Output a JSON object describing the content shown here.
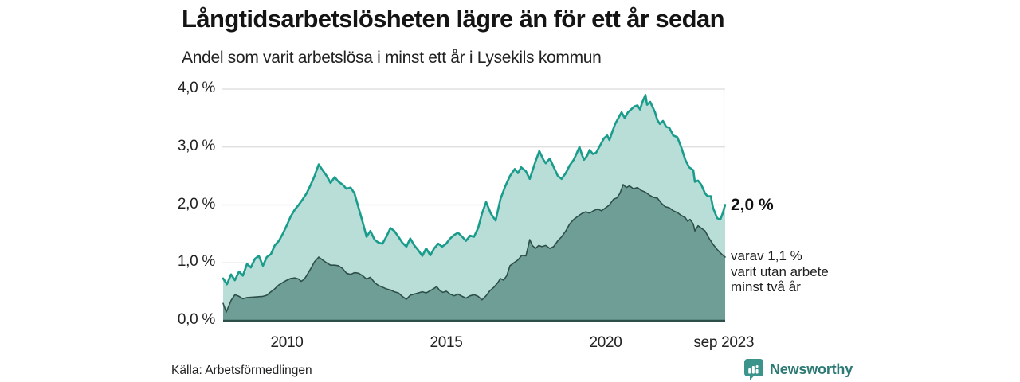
{
  "header": {
    "title": "Långtidsarbetslösheten lägre än för ett år sedan",
    "subtitle": "Andel som varit arbetslösa i minst ett år i Lysekils kommun"
  },
  "footer": {
    "source": "Källa: Arbetsförmedlingen",
    "brand": "Newsworthy",
    "brand_color": "#2d7a74",
    "brand_icon": "bar-chart-speech-bubble-icon",
    "brand_icon_color": "#3b948c"
  },
  "chart_data": {
    "type": "area",
    "title": "Långtidsarbetslösheten lägre än för ett år sedan",
    "subtitle": "Andel som varit arbetslösa i minst ett år i Lysekils kommun",
    "x_range": [
      2008,
      2023.75
    ],
    "ylim": [
      0,
      4.0
    ],
    "grid": "horizontal",
    "grid_color": "#dcdcdc",
    "baseline_color": "#2d4f4a",
    "y_ticks": [
      {
        "v": 0.0,
        "label": "0,0 %"
      },
      {
        "v": 1.0,
        "label": "1,0 %"
      },
      {
        "v": 2.0,
        "label": "2,0 %"
      },
      {
        "v": 3.0,
        "label": "3,0 %"
      },
      {
        "v": 4.0,
        "label": "4,0 %"
      }
    ],
    "x_ticks": [
      {
        "t": 2010,
        "label": "2010"
      },
      {
        "t": 2015,
        "label": "2015"
      },
      {
        "t": 2020,
        "label": "2020"
      },
      {
        "t": 2023.708,
        "label": "sep 2023"
      }
    ],
    "annotations": {
      "end_value_label": "2,0 %",
      "sub_lines": [
        "varav 1,1 %",
        "varit utan arbete",
        "minst två år"
      ]
    },
    "series": [
      {
        "name": "Arbetslösa minst ett år",
        "end_value": 2.0,
        "line_color": "#1a9c8c",
        "fill_color": "#b9ddd7",
        "line_width": 2.6,
        "points": [
          [
            0,
            0.73
          ],
          [
            0.12,
            0.63
          ],
          [
            0.25,
            0.8
          ],
          [
            0.37,
            0.7
          ],
          [
            0.5,
            0.85
          ],
          [
            0.62,
            0.78
          ],
          [
            0.75,
            0.98
          ],
          [
            0.87,
            0.92
          ],
          [
            1,
            1.07
          ],
          [
            1.12,
            1.12
          ],
          [
            1.25,
            0.95
          ],
          [
            1.37,
            1.1
          ],
          [
            1.5,
            1.15
          ],
          [
            1.62,
            1.3
          ],
          [
            1.75,
            1.38
          ],
          [
            1.87,
            1.5
          ],
          [
            2,
            1.65
          ],
          [
            2.12,
            1.8
          ],
          [
            2.25,
            1.92
          ],
          [
            2.37,
            2.0
          ],
          [
            2.5,
            2.1
          ],
          [
            2.62,
            2.2
          ],
          [
            2.75,
            2.35
          ],
          [
            2.87,
            2.5
          ],
          [
            3,
            2.7
          ],
          [
            3.12,
            2.6
          ],
          [
            3.25,
            2.5
          ],
          [
            3.37,
            2.38
          ],
          [
            3.5,
            2.48
          ],
          [
            3.62,
            2.4
          ],
          [
            3.75,
            2.35
          ],
          [
            3.87,
            2.28
          ],
          [
            4,
            2.3
          ],
          [
            4.12,
            2.2
          ],
          [
            4.25,
            1.95
          ],
          [
            4.37,
            1.72
          ],
          [
            4.5,
            1.45
          ],
          [
            4.62,
            1.55
          ],
          [
            4.75,
            1.4
          ],
          [
            4.87,
            1.35
          ],
          [
            5,
            1.33
          ],
          [
            5.12,
            1.45
          ],
          [
            5.25,
            1.6
          ],
          [
            5.37,
            1.55
          ],
          [
            5.5,
            1.45
          ],
          [
            5.62,
            1.35
          ],
          [
            5.75,
            1.28
          ],
          [
            5.87,
            1.42
          ],
          [
            6,
            1.3
          ],
          [
            6.12,
            1.22
          ],
          [
            6.25,
            1.12
          ],
          [
            6.37,
            1.25
          ],
          [
            6.5,
            1.13
          ],
          [
            6.62,
            1.25
          ],
          [
            6.75,
            1.33
          ],
          [
            6.87,
            1.28
          ],
          [
            7,
            1.33
          ],
          [
            7.12,
            1.42
          ],
          [
            7.25,
            1.48
          ],
          [
            7.37,
            1.52
          ],
          [
            7.5,
            1.45
          ],
          [
            7.62,
            1.38
          ],
          [
            7.75,
            1.47
          ],
          [
            7.87,
            1.45
          ],
          [
            8,
            1.6
          ],
          [
            8.12,
            1.85
          ],
          [
            8.25,
            2.05
          ],
          [
            8.4,
            1.85
          ],
          [
            8.55,
            1.73
          ],
          [
            8.7,
            2.1
          ],
          [
            8.85,
            2.32
          ],
          [
            9,
            2.5
          ],
          [
            9.15,
            2.62
          ],
          [
            9.25,
            2.55
          ],
          [
            9.35,
            2.65
          ],
          [
            9.5,
            2.58
          ],
          [
            9.62,
            2.45
          ],
          [
            9.8,
            2.75
          ],
          [
            9.92,
            2.93
          ],
          [
            10.05,
            2.78
          ],
          [
            10.12,
            2.72
          ],
          [
            10.25,
            2.8
          ],
          [
            10.4,
            2.62
          ],
          [
            10.5,
            2.5
          ],
          [
            10.62,
            2.45
          ],
          [
            10.75,
            2.55
          ],
          [
            10.87,
            2.68
          ],
          [
            11,
            2.78
          ],
          [
            11.1,
            2.9
          ],
          [
            11.18,
            3.0
          ],
          [
            11.25,
            2.88
          ],
          [
            11.32,
            2.78
          ],
          [
            11.42,
            2.85
          ],
          [
            11.5,
            2.95
          ],
          [
            11.6,
            2.88
          ],
          [
            11.7,
            2.9
          ],
          [
            11.8,
            3.0
          ],
          [
            11.88,
            3.08
          ],
          [
            11.95,
            3.15
          ],
          [
            12.05,
            3.2
          ],
          [
            12.12,
            3.12
          ],
          [
            12.2,
            3.25
          ],
          [
            12.3,
            3.4
          ],
          [
            12.4,
            3.5
          ],
          [
            12.5,
            3.6
          ],
          [
            12.6,
            3.5
          ],
          [
            12.7,
            3.6
          ],
          [
            12.8,
            3.65
          ],
          [
            12.9,
            3.7
          ],
          [
            13,
            3.72
          ],
          [
            13.08,
            3.65
          ],
          [
            13.15,
            3.77
          ],
          [
            13.25,
            3.9
          ],
          [
            13.3,
            3.73
          ],
          [
            13.4,
            3.78
          ],
          [
            13.45,
            3.72
          ],
          [
            13.55,
            3.6
          ],
          [
            13.62,
            3.47
          ],
          [
            13.7,
            3.4
          ],
          [
            13.8,
            3.45
          ],
          [
            13.9,
            3.35
          ],
          [
            14,
            3.33
          ],
          [
            14.12,
            3.2
          ],
          [
            14.25,
            3.17
          ],
          [
            14.37,
            3.0
          ],
          [
            14.5,
            2.78
          ],
          [
            14.62,
            2.65
          ],
          [
            14.75,
            2.6
          ],
          [
            14.8,
            2.4
          ],
          [
            14.9,
            2.42
          ],
          [
            15,
            2.35
          ],
          [
            15.12,
            2.2
          ],
          [
            15.2,
            2.15
          ],
          [
            15.3,
            2.15
          ],
          [
            15.37,
            1.95
          ],
          [
            15.5,
            1.77
          ],
          [
            15.6,
            1.75
          ],
          [
            15.67,
            1.85
          ],
          [
            15.75,
            2.0
          ]
        ]
      },
      {
        "name": "Arbetslösa minst två år",
        "end_value": 1.1,
        "line_color": "#2d4f4a",
        "fill_color": "#6f9e97",
        "line_width": 1.6,
        "points": [
          [
            0,
            0.3
          ],
          [
            0.1,
            0.15
          ],
          [
            0.25,
            0.35
          ],
          [
            0.37,
            0.45
          ],
          [
            0.5,
            0.42
          ],
          [
            0.62,
            0.38
          ],
          [
            0.75,
            0.4
          ],
          [
            1,
            0.41
          ],
          [
            1.25,
            0.42
          ],
          [
            1.37,
            0.44
          ],
          [
            1.5,
            0.5
          ],
          [
            1.62,
            0.55
          ],
          [
            1.75,
            0.62
          ],
          [
            1.87,
            0.66
          ],
          [
            2,
            0.7
          ],
          [
            2.12,
            0.73
          ],
          [
            2.25,
            0.74
          ],
          [
            2.37,
            0.72
          ],
          [
            2.45,
            0.68
          ],
          [
            2.55,
            0.72
          ],
          [
            2.62,
            0.78
          ],
          [
            2.75,
            0.9
          ],
          [
            2.87,
            1.02
          ],
          [
            3,
            1.1
          ],
          [
            3.12,
            1.05
          ],
          [
            3.25,
            1.0
          ],
          [
            3.37,
            0.96
          ],
          [
            3.5,
            0.96
          ],
          [
            3.62,
            0.95
          ],
          [
            3.75,
            0.9
          ],
          [
            3.87,
            0.82
          ],
          [
            4,
            0.8
          ],
          [
            4.12,
            0.83
          ],
          [
            4.25,
            0.82
          ],
          [
            4.37,
            0.78
          ],
          [
            4.5,
            0.72
          ],
          [
            4.62,
            0.75
          ],
          [
            4.75,
            0.66
          ],
          [
            4.87,
            0.61
          ],
          [
            5,
            0.58
          ],
          [
            5.12,
            0.55
          ],
          [
            5.25,
            0.53
          ],
          [
            5.37,
            0.5
          ],
          [
            5.5,
            0.48
          ],
          [
            5.62,
            0.42
          ],
          [
            5.75,
            0.37
          ],
          [
            5.87,
            0.44
          ],
          [
            6,
            0.46
          ],
          [
            6.12,
            0.48
          ],
          [
            6.25,
            0.5
          ],
          [
            6.37,
            0.48
          ],
          [
            6.5,
            0.52
          ],
          [
            6.62,
            0.56
          ],
          [
            6.7,
            0.59
          ],
          [
            6.8,
            0.52
          ],
          [
            6.9,
            0.49
          ],
          [
            7,
            0.51
          ],
          [
            7.12,
            0.46
          ],
          [
            7.25,
            0.43
          ],
          [
            7.37,
            0.46
          ],
          [
            7.5,
            0.42
          ],
          [
            7.62,
            0.39
          ],
          [
            7.75,
            0.43
          ],
          [
            7.87,
            0.45
          ],
          [
            8,
            0.42
          ],
          [
            8.12,
            0.36
          ],
          [
            8.25,
            0.43
          ],
          [
            8.37,
            0.52
          ],
          [
            8.5,
            0.58
          ],
          [
            8.62,
            0.66
          ],
          [
            8.7,
            0.73
          ],
          [
            8.8,
            0.7
          ],
          [
            8.9,
            0.78
          ],
          [
            9,
            0.95
          ],
          [
            9.12,
            1.0
          ],
          [
            9.25,
            1.05
          ],
          [
            9.37,
            1.13
          ],
          [
            9.5,
            1.12
          ],
          [
            9.62,
            1.4
          ],
          [
            9.7,
            1.3
          ],
          [
            9.8,
            1.25
          ],
          [
            9.9,
            1.3
          ],
          [
            10,
            1.28
          ],
          [
            10.12,
            1.3
          ],
          [
            10.25,
            1.25
          ],
          [
            10.37,
            1.28
          ],
          [
            10.5,
            1.38
          ],
          [
            10.62,
            1.45
          ],
          [
            10.75,
            1.55
          ],
          [
            10.87,
            1.67
          ],
          [
            11,
            1.75
          ],
          [
            11.12,
            1.8
          ],
          [
            11.25,
            1.85
          ],
          [
            11.37,
            1.88
          ],
          [
            11.5,
            1.86
          ],
          [
            11.62,
            1.9
          ],
          [
            11.75,
            1.93
          ],
          [
            11.87,
            1.9
          ],
          [
            12,
            1.95
          ],
          [
            12.12,
            2.0
          ],
          [
            12.25,
            2.1
          ],
          [
            12.35,
            2.12
          ],
          [
            12.45,
            2.2
          ],
          [
            12.55,
            2.35
          ],
          [
            12.65,
            2.3
          ],
          [
            12.75,
            2.33
          ],
          [
            12.87,
            2.28
          ],
          [
            13,
            2.3
          ],
          [
            13.12,
            2.25
          ],
          [
            13.25,
            2.22
          ],
          [
            13.37,
            2.17
          ],
          [
            13.5,
            2.13
          ],
          [
            13.62,
            2.12
          ],
          [
            13.75,
            2.03
          ],
          [
            13.87,
            1.97
          ],
          [
            14,
            1.95
          ],
          [
            14.12,
            1.9
          ],
          [
            14.25,
            1.87
          ],
          [
            14.37,
            1.82
          ],
          [
            14.5,
            1.78
          ],
          [
            14.57,
            1.72
          ],
          [
            14.65,
            1.75
          ],
          [
            14.75,
            1.67
          ],
          [
            14.8,
            1.55
          ],
          [
            14.9,
            1.64
          ],
          [
            15,
            1.6
          ],
          [
            15.12,
            1.55
          ],
          [
            15.25,
            1.42
          ],
          [
            15.37,
            1.32
          ],
          [
            15.5,
            1.23
          ],
          [
            15.62,
            1.16
          ],
          [
            15.75,
            1.1
          ]
        ]
      }
    ]
  }
}
